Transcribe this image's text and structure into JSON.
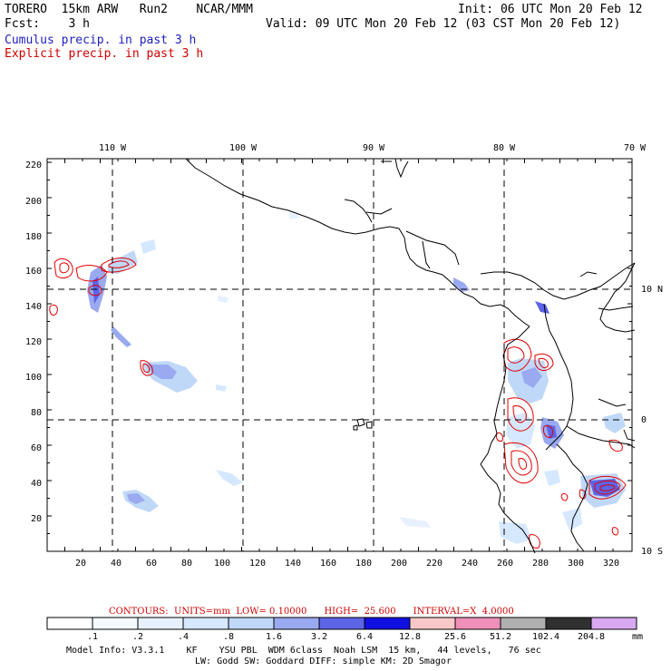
{
  "header": {
    "model_line": "TORERO  15km ARW   Run2    NCAR/MMM",
    "init_line": "Init: 06 UTC Mon 20 Feb 12",
    "fcst_line": "Fcst:    3 h",
    "valid_line": "Valid: 09 UTC Mon 20 Feb 12 (03 CST Mon 20 Feb 12)",
    "legend_cumulus": "Cumulus precip. in past 3 h",
    "legend_explicit": "Explicit precip. in past 3 h"
  },
  "colors": {
    "cumulus_text": "#2020c0",
    "explicit_text": "#d00000",
    "contour": "#e00000",
    "coast": "#000000"
  },
  "map": {
    "top_lon_labels": [
      "110 W",
      "100 W",
      "90 W",
      "80 W",
      "70 W"
    ],
    "right_lat_labels": [
      "10 N",
      "0",
      "10 S"
    ],
    "left_grid_labels": [
      "220",
      "200",
      "180",
      "160",
      "140",
      "120",
      "100",
      "80",
      "60",
      "40",
      "20"
    ],
    "bottom_grid_labels": [
      "20",
      "40",
      "60",
      "80",
      "100",
      "120",
      "140",
      "160",
      "180",
      "200",
      "220",
      "240",
      "260",
      "280",
      "300",
      "320"
    ]
  },
  "colorbar": {
    "contour_line": "CONTOURS:  UNITS=mm  LOW= 0.10000      HIGH=  25.600      INTERVAL=X  4.0000",
    "labels": [
      ".1",
      ".2",
      ".4",
      ".8",
      "1.6",
      "3.2",
      "6.4",
      "12.8",
      "25.6",
      "51.2",
      "102.4",
      "204.8"
    ],
    "unit": "mm",
    "colors": [
      "#ffffff",
      "#f4f8ff",
      "#e6f0ff",
      "#d6e8ff",
      "#c0d8f8",
      "#9aaaf0",
      "#5c64e8",
      "#1010e0",
      "#f8c8c8",
      "#f090b8",
      "#b0b0b0",
      "#303030",
      "#d8a8f0"
    ]
  },
  "footer": {
    "line1": "Model Info: V3.3.1    KF    YSU PBL  WDM 6class  Noah LSM  15 km,   44 levels,   76 sec",
    "line2": "LW: Godd SW: Goddard DIFF: simple KM: 2D Smagor"
  }
}
